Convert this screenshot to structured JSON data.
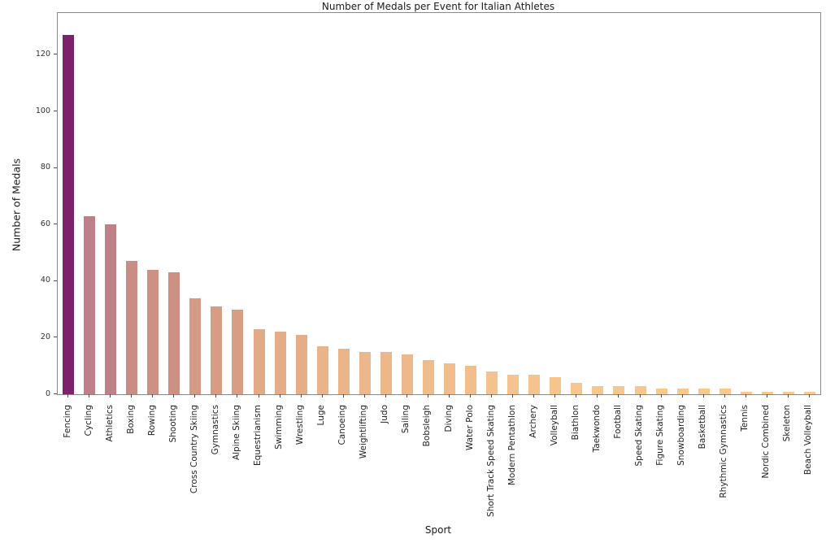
{
  "chart_data": {
    "type": "bar",
    "title": "Number of Medals per Event for Italian Athletes",
    "xlabel": "Sport",
    "ylabel": "Number of Medals",
    "categories": [
      "Fencing",
      "Cycling",
      "Athletics",
      "Boxing",
      "Rowing",
      "Shooting",
      "Cross Country Skiing",
      "Gymnastics",
      "Alpine Skiing",
      "Equestrianism",
      "Swimming",
      "Wrestling",
      "Luge",
      "Canoeing",
      "Weightlifting",
      "Judo",
      "Sailing",
      "Bobsleigh",
      "Diving",
      "Water Polo",
      "Short Track Speed Skating",
      "Modern Pentathlon",
      "Archery",
      "Volleyball",
      "Biathlon",
      "Taekwondo",
      "Football",
      "Speed Skating",
      "Figure Skating",
      "Snowboarding",
      "Basketball",
      "Rhythmic Gymnastics",
      "Tennis",
      "Nordic Combined",
      "Skeleton",
      "Beach Volleyball"
    ],
    "values": [
      127,
      63,
      60,
      47,
      44,
      43,
      34,
      31,
      30,
      23,
      22,
      21,
      17,
      16,
      15,
      15,
      14,
      12,
      11,
      10,
      8,
      7,
      7,
      6,
      4,
      3,
      3,
      3,
      2,
      2,
      2,
      2,
      1,
      1,
      1,
      1
    ],
    "yticks": [
      0,
      20,
      40,
      60,
      80,
      100,
      120
    ],
    "ylim": [
      0,
      134.8
    ],
    "grid": false,
    "legend": null,
    "color_stops": [
      {
        "value": 1,
        "color": "#f9c98f"
      },
      {
        "value": 6,
        "color": "#f6c58e"
      },
      {
        "value": 10,
        "color": "#f2bf8c"
      },
      {
        "value": 14,
        "color": "#edb88b"
      },
      {
        "value": 17,
        "color": "#eab48a"
      },
      {
        "value": 21,
        "color": "#e5ae86"
      },
      {
        "value": 23,
        "color": "#e2ab85"
      },
      {
        "value": 30,
        "color": "#d89e84"
      },
      {
        "value": 34,
        "color": "#d49a85"
      },
      {
        "value": 43,
        "color": "#cd9184"
      },
      {
        "value": 47,
        "color": "#ca8d85"
      },
      {
        "value": 60,
        "color": "#c08089"
      },
      {
        "value": 63,
        "color": "#bf7e8a"
      },
      {
        "value": 127,
        "color": "#7c226c"
      }
    ],
    "axis_color": "#898989",
    "text_color": "#1f1f1f"
  }
}
